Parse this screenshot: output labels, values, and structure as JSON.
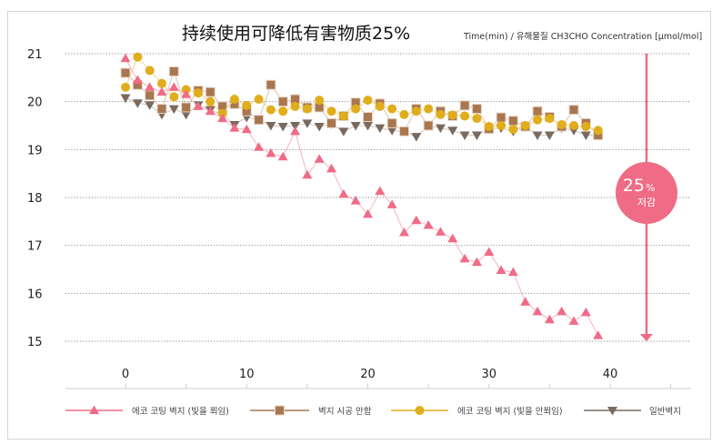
{
  "chart_data": {
    "type": "line",
    "title": "持续使用可降低有害物质25%",
    "subtitle": "Time(min) / 유해물질 CH3CHO Concentration [μmol/mol]",
    "xlabel": "Time(min)",
    "ylabel": "CH3CHO Concentration [μmol/mol]",
    "xlim": [
      0,
      40
    ],
    "ylim": [
      15,
      21
    ],
    "x_ticks": [
      "0",
      "10",
      "20",
      "30",
      "40"
    ],
    "x_tick_values": [
      0,
      10,
      20,
      30,
      40
    ],
    "y_ticks": [
      "21",
      "20",
      "19",
      "18",
      "17",
      "16",
      "15"
    ],
    "y_tick_values": [
      21,
      20,
      19,
      18,
      17,
      16,
      15
    ],
    "grid": true,
    "legend_position": "bottom",
    "x": [
      0,
      1,
      2,
      3,
      4,
      5,
      6,
      7,
      8,
      9,
      10,
      11,
      12,
      13,
      14,
      15,
      16,
      17,
      18,
      19,
      20,
      21,
      22,
      23,
      24,
      25,
      26,
      27,
      28,
      29,
      30,
      31,
      32,
      33,
      34,
      35,
      36,
      37,
      38,
      39
    ],
    "series": [
      {
        "name": "에코 코팅 벽지 (빛을 쬐임)",
        "color": "#f06b86",
        "line_color": "#f7b3c1",
        "marker": "triangle-up",
        "values": [
          20.9,
          20.45,
          20.3,
          20.2,
          20.3,
          20.15,
          19.9,
          19.8,
          19.65,
          19.45,
          19.42,
          19.05,
          18.92,
          18.85,
          19.38,
          18.47,
          18.8,
          18.6,
          18.07,
          17.93,
          17.65,
          18.13,
          17.85,
          17.27,
          17.52,
          17.42,
          17.28,
          17.14,
          16.72,
          16.65,
          16.86,
          16.48,
          16.44,
          15.82,
          15.62,
          15.45,
          15.62,
          15.42,
          15.6,
          15.12
        ]
      },
      {
        "name": "벽지 시공 안함",
        "color": "#a8764f",
        "line_color": "#dcc3b0",
        "marker": "square",
        "values": [
          20.6,
          20.35,
          20.13,
          19.85,
          20.63,
          19.88,
          20.23,
          20.2,
          19.9,
          19.95,
          19.8,
          19.62,
          20.35,
          20.0,
          20.05,
          19.88,
          19.88,
          19.55,
          19.7,
          19.98,
          19.68,
          19.96,
          19.55,
          19.38,
          19.85,
          19.5,
          19.8,
          19.7,
          19.92,
          19.85,
          19.43,
          19.67,
          19.6,
          19.48,
          19.8,
          19.68,
          19.48,
          19.83,
          19.55,
          19.3
        ]
      },
      {
        "name": "에코 코팅 벽지 (빛을 안쬐임)",
        "color": "#e0ad1c",
        "line_color": "#f0d68c",
        "marker": "circle",
        "values": [
          20.3,
          20.93,
          20.65,
          20.38,
          20.1,
          20.25,
          20.18,
          20.0,
          19.75,
          20.05,
          19.92,
          20.05,
          19.83,
          19.8,
          19.9,
          19.85,
          20.03,
          19.8,
          19.7,
          19.85,
          20.03,
          19.9,
          19.85,
          19.73,
          19.8,
          19.85,
          19.73,
          19.72,
          19.7,
          19.65,
          19.48,
          19.5,
          19.42,
          19.5,
          19.62,
          19.65,
          19.52,
          19.5,
          19.48,
          19.4
        ]
      },
      {
        "name": "일반벽지",
        "color": "#7a6a5e",
        "line_color": "#cfc7c1",
        "marker": "triangle-down",
        "values": [
          20.08,
          19.97,
          19.93,
          19.73,
          19.85,
          19.73,
          19.93,
          19.83,
          19.72,
          19.52,
          19.67,
          19.62,
          19.5,
          19.48,
          19.5,
          19.55,
          19.48,
          19.53,
          19.38,
          19.5,
          19.5,
          19.45,
          19.4,
          19.37,
          19.27,
          19.5,
          19.45,
          19.4,
          19.3,
          19.3,
          19.43,
          19.45,
          19.38,
          19.48,
          19.3,
          19.3,
          19.45,
          19.4,
          19.3,
          19.3
        ]
      }
    ],
    "annotation": {
      "value": "25",
      "unit": "%",
      "label": "저감",
      "color": "#f06b86",
      "from": 21,
      "to": 15
    }
  }
}
